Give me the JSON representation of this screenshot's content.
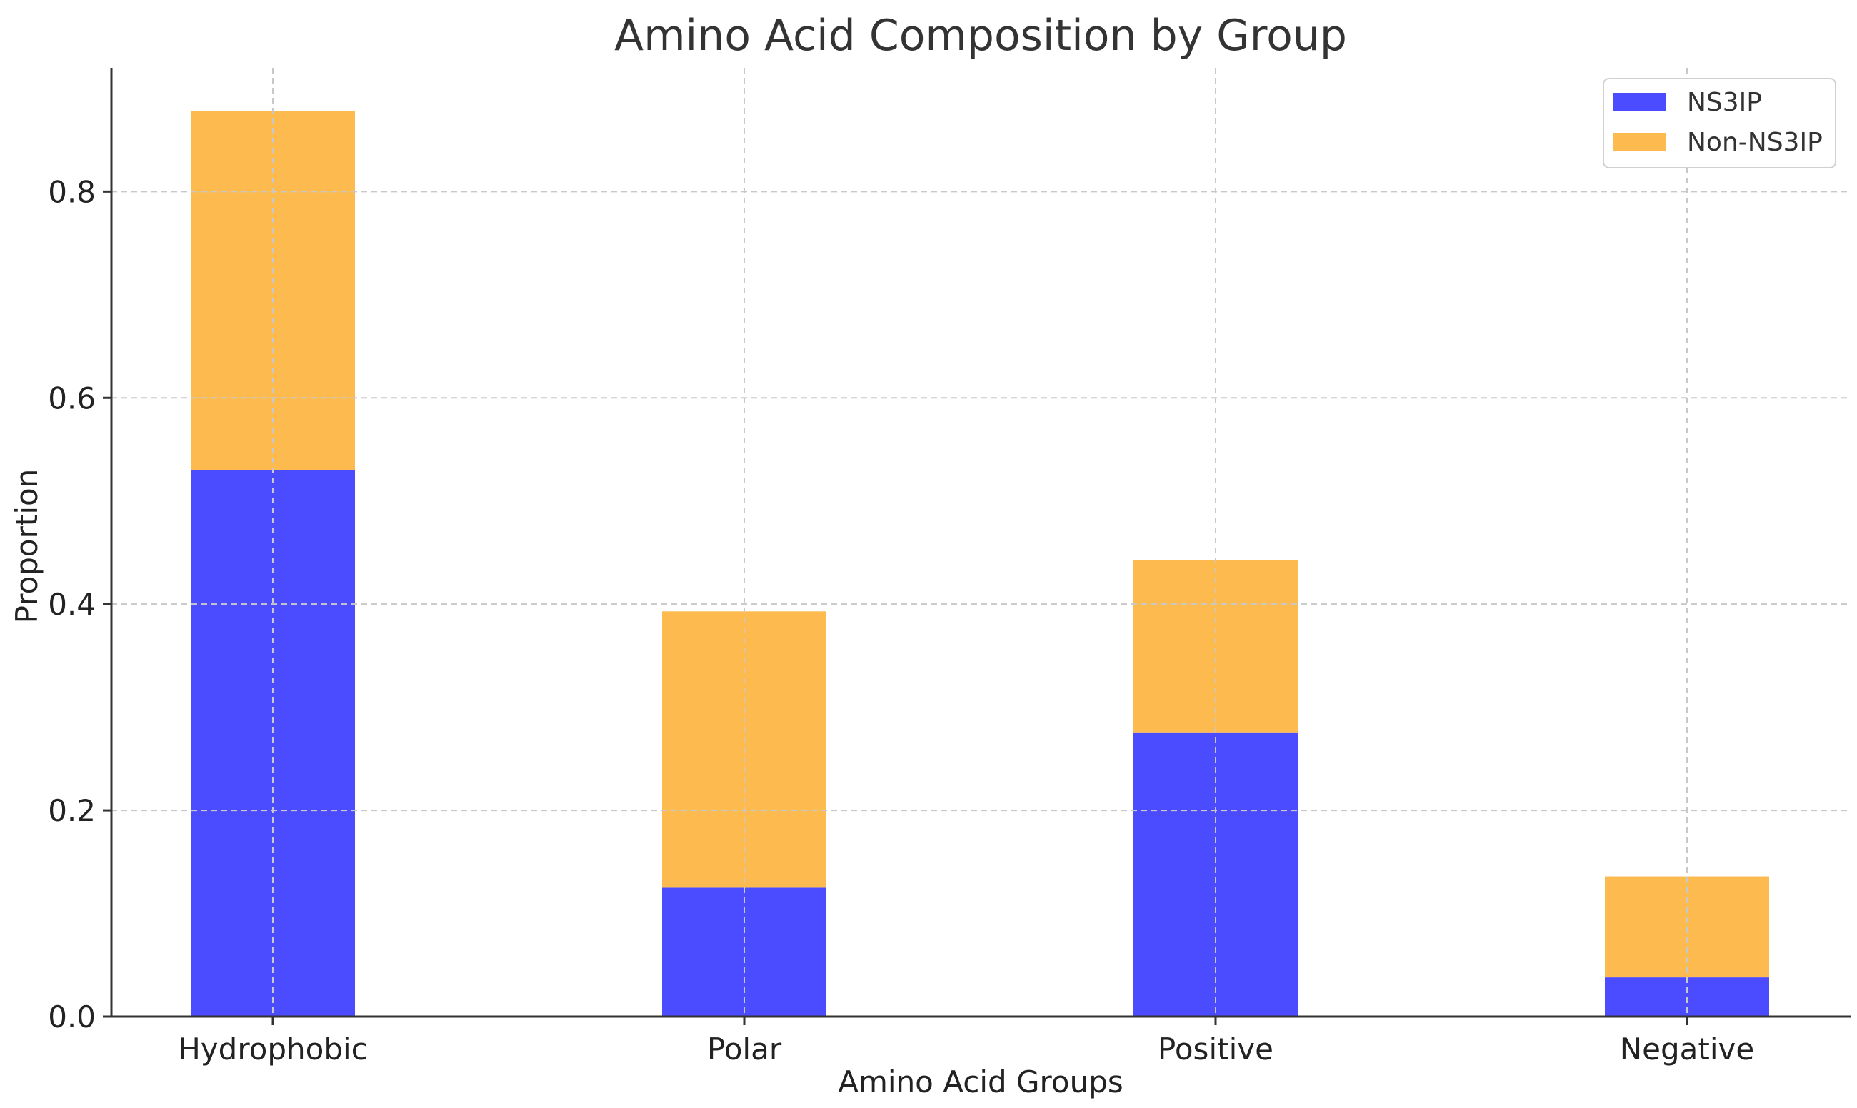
{
  "chart_data": {
    "type": "bar",
    "stacked": true,
    "title": "Amino Acid Composition by Group",
    "xlabel": "Amino Acid Groups",
    "ylabel": "Proportion",
    "categories": [
      "Hydrophobic",
      "Polar",
      "Positive",
      "Negative"
    ],
    "series": [
      {
        "name": "NS3IP",
        "color": "#4b4bff",
        "values": [
          0.53,
          0.125,
          0.275,
          0.038
        ]
      },
      {
        "name": "Non-NS3IP",
        "color": "#fdbb4f",
        "values": [
          0.348,
          0.268,
          0.168,
          0.098
        ]
      }
    ],
    "ylim": [
      0,
      0.92
    ],
    "yticks": [
      0.0,
      0.2,
      0.4,
      0.6,
      0.8
    ],
    "ytick_labels": [
      "0.0",
      "0.2",
      "0.4",
      "0.6",
      "0.8"
    ],
    "grid": true,
    "legend_position": "top-right"
  }
}
